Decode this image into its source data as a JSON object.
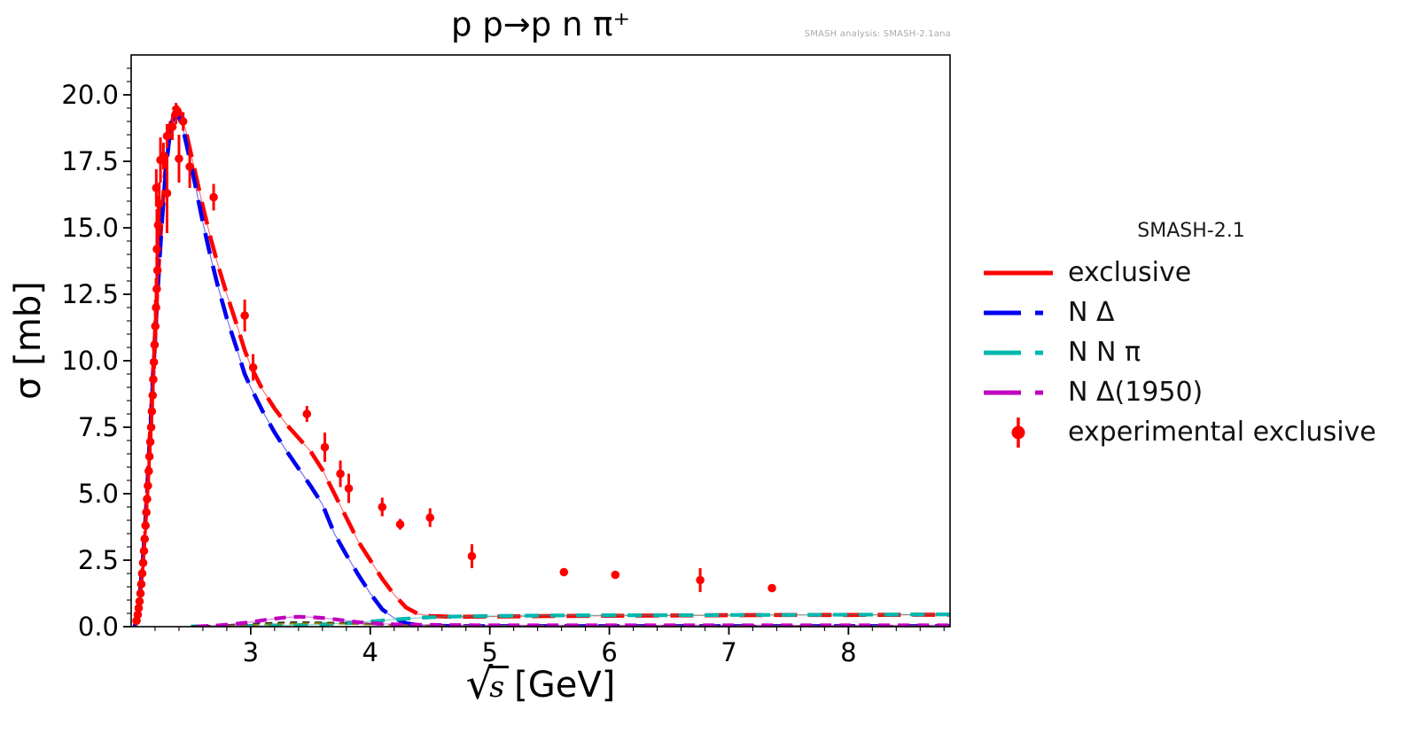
{
  "figure": {
    "title": "p p→p n π⁺",
    "watermark": "SMASH analysis: SMASH-2.1ana",
    "xlabel": {
      "radical": "√",
      "radicand": "s",
      "unit": "[GeV]"
    },
    "ylabel": "σ [mb]"
  },
  "legend": {
    "title": "SMASH-2.1",
    "entries": [
      {
        "label": "exclusive",
        "type": "line-solid",
        "color": "#ff0000"
      },
      {
        "label": "N Δ",
        "type": "line-dashed",
        "color": "#0000f0"
      },
      {
        "label": "N N π",
        "type": "line-dashed",
        "color": "#00b8ae"
      },
      {
        "label": "N Δ(1950)",
        "type": "line-dashed",
        "color": "#bf00bf"
      },
      {
        "label": "experimental exclusive",
        "type": "point-errorbar",
        "color": "#ff0000"
      }
    ]
  },
  "chart_data": {
    "type": "line",
    "title": "p p→p n π⁺",
    "xlabel": "√s [GeV]",
    "ylabel": "σ [mb]",
    "xlim": [
      2.0,
      8.85
    ],
    "ylim": [
      0,
      21.5
    ],
    "x_major_ticks": [
      3,
      4,
      5,
      6,
      7,
      8
    ],
    "x_minor_step": 0.2,
    "y_major_ticks": [
      0.0,
      2.5,
      5.0,
      7.5,
      10.0,
      12.5,
      15.0,
      17.5,
      20.0
    ],
    "y_minor_step": 0.5,
    "grid": false,
    "legend_position": "right-outside",
    "series": [
      {
        "name": "exclusive",
        "color": "#ff0000",
        "dash": [
          26,
          13
        ],
        "points": [
          [
            2.03,
            0.0
          ],
          [
            2.045,
            0.3
          ],
          [
            2.06,
            0.75
          ],
          [
            2.075,
            1.35
          ],
          [
            2.09,
            2.1
          ],
          [
            2.105,
            3.0
          ],
          [
            2.12,
            4.1
          ],
          [
            2.135,
            5.3
          ],
          [
            2.15,
            6.6
          ],
          [
            2.165,
            7.95
          ],
          [
            2.18,
            9.3
          ],
          [
            2.2,
            11.1
          ],
          [
            2.22,
            12.8
          ],
          [
            2.24,
            14.3
          ],
          [
            2.26,
            15.7
          ],
          [
            2.28,
            16.9
          ],
          [
            2.3,
            17.9
          ],
          [
            2.32,
            18.7
          ],
          [
            2.34,
            19.2
          ],
          [
            2.36,
            19.5
          ],
          [
            2.38,
            19.55
          ],
          [
            2.4,
            19.45
          ],
          [
            2.43,
            19.1
          ],
          [
            2.46,
            18.6
          ],
          [
            2.5,
            17.8
          ],
          [
            2.55,
            16.8
          ],
          [
            2.6,
            15.8
          ],
          [
            2.66,
            14.7
          ],
          [
            2.72,
            13.7
          ],
          [
            2.8,
            12.5
          ],
          [
            2.88,
            11.4
          ],
          [
            2.95,
            10.4
          ],
          [
            3.0,
            9.8
          ],
          [
            3.1,
            8.9
          ],
          [
            3.2,
            8.2
          ],
          [
            3.3,
            7.6
          ],
          [
            3.4,
            7.1
          ],
          [
            3.5,
            6.6
          ],
          [
            3.6,
            5.9
          ],
          [
            3.7,
            5.0
          ],
          [
            3.8,
            4.1
          ],
          [
            3.9,
            3.2
          ],
          [
            4.0,
            2.5
          ],
          [
            4.1,
            1.8
          ],
          [
            4.2,
            1.2
          ],
          [
            4.3,
            0.72
          ],
          [
            4.4,
            0.48
          ],
          [
            4.5,
            0.4
          ],
          [
            4.7,
            0.37
          ],
          [
            5.0,
            0.38
          ],
          [
            5.5,
            0.4
          ],
          [
            6.0,
            0.41
          ],
          [
            6.5,
            0.42
          ],
          [
            7.0,
            0.43
          ],
          [
            7.5,
            0.44
          ],
          [
            8.0,
            0.44
          ],
          [
            8.85,
            0.45
          ]
        ]
      },
      {
        "name": "N Δ",
        "color": "#0000f0",
        "dash": [
          24,
          14
        ],
        "points": [
          [
            2.03,
            0.0
          ],
          [
            2.045,
            0.3
          ],
          [
            2.06,
            0.72
          ],
          [
            2.075,
            1.3
          ],
          [
            2.09,
            2.0
          ],
          [
            2.105,
            2.9
          ],
          [
            2.12,
            4.0
          ],
          [
            2.135,
            5.15
          ],
          [
            2.15,
            6.4
          ],
          [
            2.165,
            7.75
          ],
          [
            2.18,
            9.1
          ],
          [
            2.2,
            10.8
          ],
          [
            2.22,
            12.5
          ],
          [
            2.24,
            14.0
          ],
          [
            2.26,
            15.4
          ],
          [
            2.28,
            16.6
          ],
          [
            2.3,
            17.6
          ],
          [
            2.32,
            18.4
          ],
          [
            2.34,
            18.95
          ],
          [
            2.36,
            19.25
          ],
          [
            2.38,
            19.3
          ],
          [
            2.4,
            19.15
          ],
          [
            2.43,
            18.8
          ],
          [
            2.46,
            18.2
          ],
          [
            2.5,
            17.4
          ],
          [
            2.55,
            16.3
          ],
          [
            2.6,
            15.2
          ],
          [
            2.66,
            14.0
          ],
          [
            2.72,
            12.9
          ],
          [
            2.8,
            11.6
          ],
          [
            2.88,
            10.5
          ],
          [
            2.95,
            9.5
          ],
          [
            3.0,
            9.0
          ],
          [
            3.1,
            8.1
          ],
          [
            3.2,
            7.3
          ],
          [
            3.3,
            6.6
          ],
          [
            3.4,
            5.95
          ],
          [
            3.5,
            5.3
          ],
          [
            3.6,
            4.6
          ],
          [
            3.7,
            3.5
          ],
          [
            3.8,
            2.7
          ],
          [
            3.9,
            1.95
          ],
          [
            4.0,
            1.25
          ],
          [
            4.1,
            0.65
          ],
          [
            4.2,
            0.32
          ],
          [
            4.3,
            0.13
          ],
          [
            4.4,
            0.06
          ],
          [
            4.55,
            0.03
          ],
          [
            4.8,
            0.02
          ],
          [
            5.5,
            0.02
          ],
          [
            6.5,
            0.02
          ],
          [
            7.5,
            0.02
          ],
          [
            8.85,
            0.02
          ]
        ]
      },
      {
        "name": "N N π",
        "color": "#00b8ae",
        "dash": [
          16,
          13
        ],
        "points": [
          [
            2.5,
            0.01
          ],
          [
            2.8,
            0.02
          ],
          [
            3.0,
            0.03
          ],
          [
            3.2,
            0.045
          ],
          [
            3.4,
            0.06
          ],
          [
            3.6,
            0.09
          ],
          [
            3.8,
            0.13
          ],
          [
            4.0,
            0.19
          ],
          [
            4.2,
            0.27
          ],
          [
            4.4,
            0.33
          ],
          [
            4.6,
            0.37
          ],
          [
            4.8,
            0.39
          ],
          [
            5.0,
            0.4
          ],
          [
            5.5,
            0.42
          ],
          [
            6.0,
            0.43
          ],
          [
            6.5,
            0.43
          ],
          [
            7.0,
            0.44
          ],
          [
            7.5,
            0.44
          ],
          [
            8.0,
            0.45
          ],
          [
            8.85,
            0.46
          ]
        ]
      },
      {
        "name": "N Δ(1950)",
        "color": "#bf00bf",
        "dash": [
          13,
          9
        ],
        "points": [
          [
            2.55,
            0.01
          ],
          [
            2.7,
            0.04
          ],
          [
            2.85,
            0.09
          ],
          [
            3.0,
            0.17
          ],
          [
            3.1,
            0.24
          ],
          [
            3.2,
            0.3
          ],
          [
            3.3,
            0.35
          ],
          [
            3.4,
            0.37
          ],
          [
            3.5,
            0.36
          ],
          [
            3.6,
            0.33
          ],
          [
            3.7,
            0.28
          ],
          [
            3.8,
            0.22
          ],
          [
            3.9,
            0.17
          ],
          [
            4.0,
            0.13
          ],
          [
            4.2,
            0.09
          ],
          [
            4.4,
            0.07
          ],
          [
            4.7,
            0.06
          ],
          [
            5.0,
            0.05
          ],
          [
            6.0,
            0.05
          ],
          [
            7.0,
            0.05
          ],
          [
            8.85,
            0.05
          ]
        ]
      }
    ],
    "unlabeled_minor_curves": [
      {
        "color": "#1a1a1a",
        "dash": [
          8,
          6
        ],
        "points": [
          [
            2.5,
            0.01
          ],
          [
            2.8,
            0.06
          ],
          [
            3.0,
            0.11
          ],
          [
            3.2,
            0.15
          ],
          [
            3.4,
            0.17
          ],
          [
            3.6,
            0.16
          ],
          [
            3.8,
            0.13
          ],
          [
            4.0,
            0.1
          ],
          [
            4.2,
            0.07
          ],
          [
            4.5,
            0.04
          ],
          [
            5.0,
            0.03
          ],
          [
            6.0,
            0.03
          ],
          [
            8.85,
            0.03
          ]
        ]
      },
      {
        "color": "#8b8000",
        "dash": [
          8,
          6
        ],
        "points": [
          [
            2.7,
            0.01
          ],
          [
            3.0,
            0.06
          ],
          [
            3.2,
            0.1
          ],
          [
            3.5,
            0.13
          ],
          [
            3.8,
            0.11
          ],
          [
            4.0,
            0.08
          ],
          [
            4.3,
            0.05
          ],
          [
            5.0,
            0.03
          ],
          [
            6.0,
            0.02
          ],
          [
            8.85,
            0.02
          ]
        ]
      }
    ],
    "experimental": {
      "name": "experimental exclusive",
      "color": "#ff0000",
      "points": [
        [
          2.045,
          0.22,
          0.08
        ],
        [
          2.055,
          0.45,
          0.1
        ],
        [
          2.063,
          0.7,
          0.12
        ],
        [
          2.07,
          0.95,
          0.15
        ],
        [
          2.078,
          1.25,
          0.18
        ],
        [
          2.085,
          1.6,
          0.2
        ],
        [
          2.092,
          2.0,
          0.22
        ],
        [
          2.1,
          2.4,
          0.25
        ],
        [
          2.107,
          2.85,
          0.28
        ],
        [
          2.113,
          3.3,
          0.3
        ],
        [
          2.12,
          3.8,
          0.32
        ],
        [
          2.127,
          4.3,
          0.35
        ],
        [
          2.133,
          4.8,
          0.38
        ],
        [
          2.14,
          5.3,
          0.4
        ],
        [
          2.147,
          5.85,
          0.42
        ],
        [
          2.153,
          6.4,
          0.45
        ],
        [
          2.16,
          6.95,
          0.45
        ],
        [
          2.167,
          7.5,
          0.5
        ],
        [
          2.173,
          8.1,
          0.5
        ],
        [
          2.18,
          8.7,
          0.55
        ],
        [
          2.185,
          9.3,
          0.6
        ],
        [
          2.19,
          9.95,
          0.8
        ],
        [
          2.196,
          10.6,
          0.9
        ],
        [
          2.202,
          11.3,
          1.0
        ],
        [
          2.208,
          12.0,
          1.1
        ],
        [
          2.214,
          12.7,
          1.2
        ],
        [
          2.22,
          13.4,
          1.4
        ],
        [
          2.215,
          14.2,
          1.5
        ],
        [
          2.225,
          15.1,
          1.1
        ],
        [
          2.235,
          15.9,
          0.8
        ],
        [
          2.21,
          16.5,
          0.7
        ],
        [
          2.245,
          17.55,
          0.85
        ],
        [
          2.27,
          17.7,
          0.5
        ],
        [
          2.3,
          16.3,
          1.5
        ],
        [
          2.3,
          18.45,
          0.45
        ],
        [
          2.345,
          18.8,
          0.5
        ],
        [
          2.375,
          19.3,
          0.4
        ],
        [
          2.4,
          17.6,
          0.9
        ],
        [
          2.435,
          19.0,
          0.35
        ],
        [
          2.49,
          17.3,
          0.8
        ],
        [
          2.69,
          16.15,
          0.5
        ],
        [
          2.95,
          11.7,
          0.6
        ],
        [
          3.02,
          9.75,
          0.5
        ],
        [
          3.47,
          8.0,
          0.3
        ],
        [
          3.62,
          6.75,
          0.55
        ],
        [
          3.75,
          5.75,
          0.5
        ],
        [
          3.82,
          5.2,
          0.55
        ],
        [
          4.1,
          4.5,
          0.35
        ],
        [
          4.25,
          3.85,
          0.2
        ],
        [
          4.5,
          4.1,
          0.35
        ],
        [
          4.85,
          2.65,
          0.45
        ],
        [
          5.62,
          2.05,
          0.15
        ],
        [
          6.05,
          1.95,
          0.12
        ],
        [
          6.76,
          1.75,
          0.45
        ],
        [
          7.36,
          1.45,
          0.12
        ]
      ]
    }
  }
}
